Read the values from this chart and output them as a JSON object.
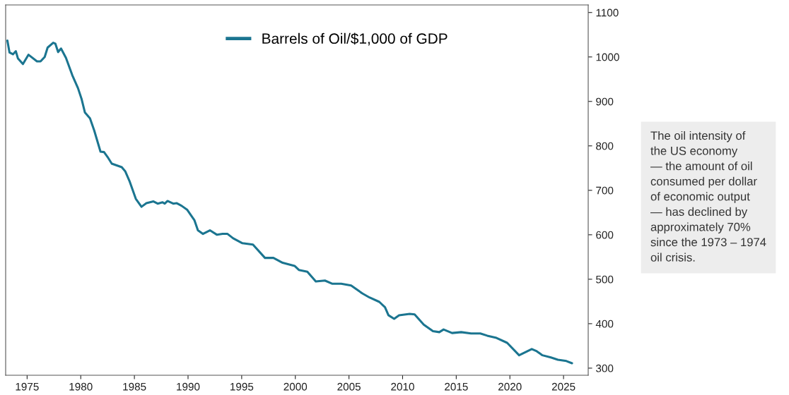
{
  "chart_data": {
    "type": "line",
    "legend": "top",
    "grid": false,
    "xlim": [
      1973,
      2027.3
    ],
    "ylim": [
      284,
      1117
    ],
    "xticks": [
      1975,
      1980,
      1985,
      1990,
      1995,
      2000,
      2005,
      2010,
      2015,
      2020,
      2025
    ],
    "yticks": [
      300,
      400,
      500,
      600,
      700,
      800,
      900,
      1000,
      1100
    ],
    "annotations": [
      "The oil intensity of\nthe US economy\n— the amount of oil\nconsumed per dollar\nof economic output\n— has declined by\napproximately 70%\nsince the 1973 – 1974\noil crisis."
    ],
    "series": [
      {
        "name": "Barrels of Oil/$1,000 of GDP",
        "color": "#1b7590",
        "x": [
          1973.16,
          1973.36,
          1973.68,
          1973.95,
          1974.14,
          1974.61,
          1975.13,
          1975.92,
          1976.25,
          1976.64,
          1976.91,
          1977.43,
          1977.63,
          1977.89,
          1978.16,
          1978.62,
          1979.21,
          1979.74,
          1980.07,
          1980.39,
          1980.86,
          1981.25,
          1981.84,
          1982.17,
          1982.5,
          1982.89,
          1983.82,
          1984.14,
          1984.54,
          1985.13,
          1985.66,
          1986.12,
          1986.78,
          1987.17,
          1987.63,
          1987.83,
          1988.09,
          1988.62,
          1988.95,
          1989.41,
          1989.93,
          1990.59,
          1990.92,
          1991.38,
          1992.04,
          1992.7,
          1993.22,
          1993.68,
          1994.21,
          1995.07,
          1996.05,
          1997.17,
          1997.96,
          1998.82,
          1999.93,
          2000.33,
          2001.12,
          2001.91,
          2002.76,
          2003.42,
          2004.28,
          2005.2,
          2006.25,
          2006.91,
          2007.83,
          2008.36,
          2008.68,
          2009.21,
          2009.67,
          2010.66,
          2011.12,
          2011.97,
          2012.83,
          2013.42,
          2013.82,
          2014.61,
          2015.46,
          2016.38,
          2017.24,
          2017.89,
          2018.75,
          2019.74,
          2020.86,
          2022.04,
          2022.5,
          2023.03,
          2023.82,
          2024.47,
          2025.26,
          2025.79
        ],
        "values": [
          1037,
          1010,
          1006,
          1013,
          997,
          984,
          1005,
          990,
          990,
          1000,
          1021,
          1032,
          1030,
          1011,
          1019,
          998,
          959,
          930,
          906,
          875,
          862,
          835,
          787,
          786,
          775,
          760,
          752,
          743,
          721,
          681,
          663,
          671,
          675,
          670,
          673,
          670,
          676,
          670,
          671,
          665,
          656,
          633,
          610,
          602,
          610,
          600,
          602,
          602,
          592,
          581,
          578,
          548,
          548,
          537,
          530,
          521,
          517,
          495,
          497,
          490,
          490,
          486,
          468,
          459,
          449,
          437,
          419,
          411,
          419,
          422,
          421,
          398,
          383,
          381,
          387,
          379,
          381,
          378,
          378,
          373,
          368,
          357,
          329,
          343,
          338,
          329,
          324,
          319,
          316,
          311
        ]
      }
    ]
  }
}
